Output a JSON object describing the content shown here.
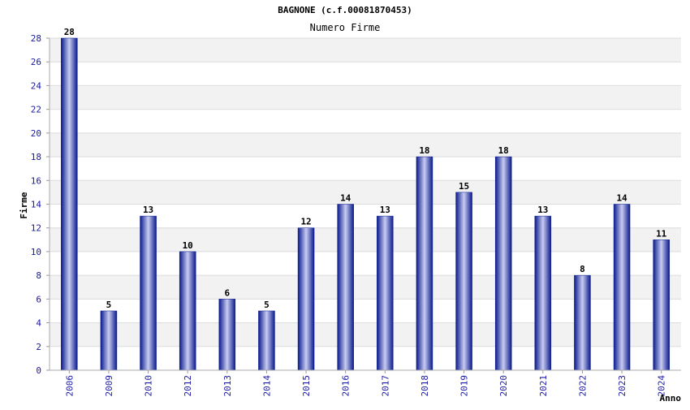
{
  "chart_data": {
    "type": "bar",
    "title": "BAGNONE (c.f.00081870453)",
    "subtitle": "Numero Firme",
    "xlabel": "Anno",
    "ylabel": "Firme",
    "categories": [
      "2006",
      "2009",
      "2010",
      "2012",
      "2013",
      "2014",
      "2015",
      "2016",
      "2017",
      "2018",
      "2019",
      "2020",
      "2021",
      "2022",
      "2023",
      "2024"
    ],
    "values": [
      28,
      5,
      13,
      10,
      6,
      5,
      12,
      14,
      13,
      18,
      15,
      18,
      13,
      8,
      14,
      11
    ],
    "ylim": [
      0,
      28
    ],
    "yticks": [
      "0",
      "2",
      "4",
      "6",
      "8",
      "10",
      "12",
      "14",
      "16",
      "18",
      "20",
      "22",
      "24",
      "26",
      "28"
    ],
    "grid": true,
    "legend": "none",
    "colors": {
      "bar_dark": "#0a1a8c",
      "bar_light": "#c8ccf2",
      "band": "#f2f2f2",
      "grid": "#dcdcdc",
      "tick_text": "#1a1aa6"
    }
  }
}
